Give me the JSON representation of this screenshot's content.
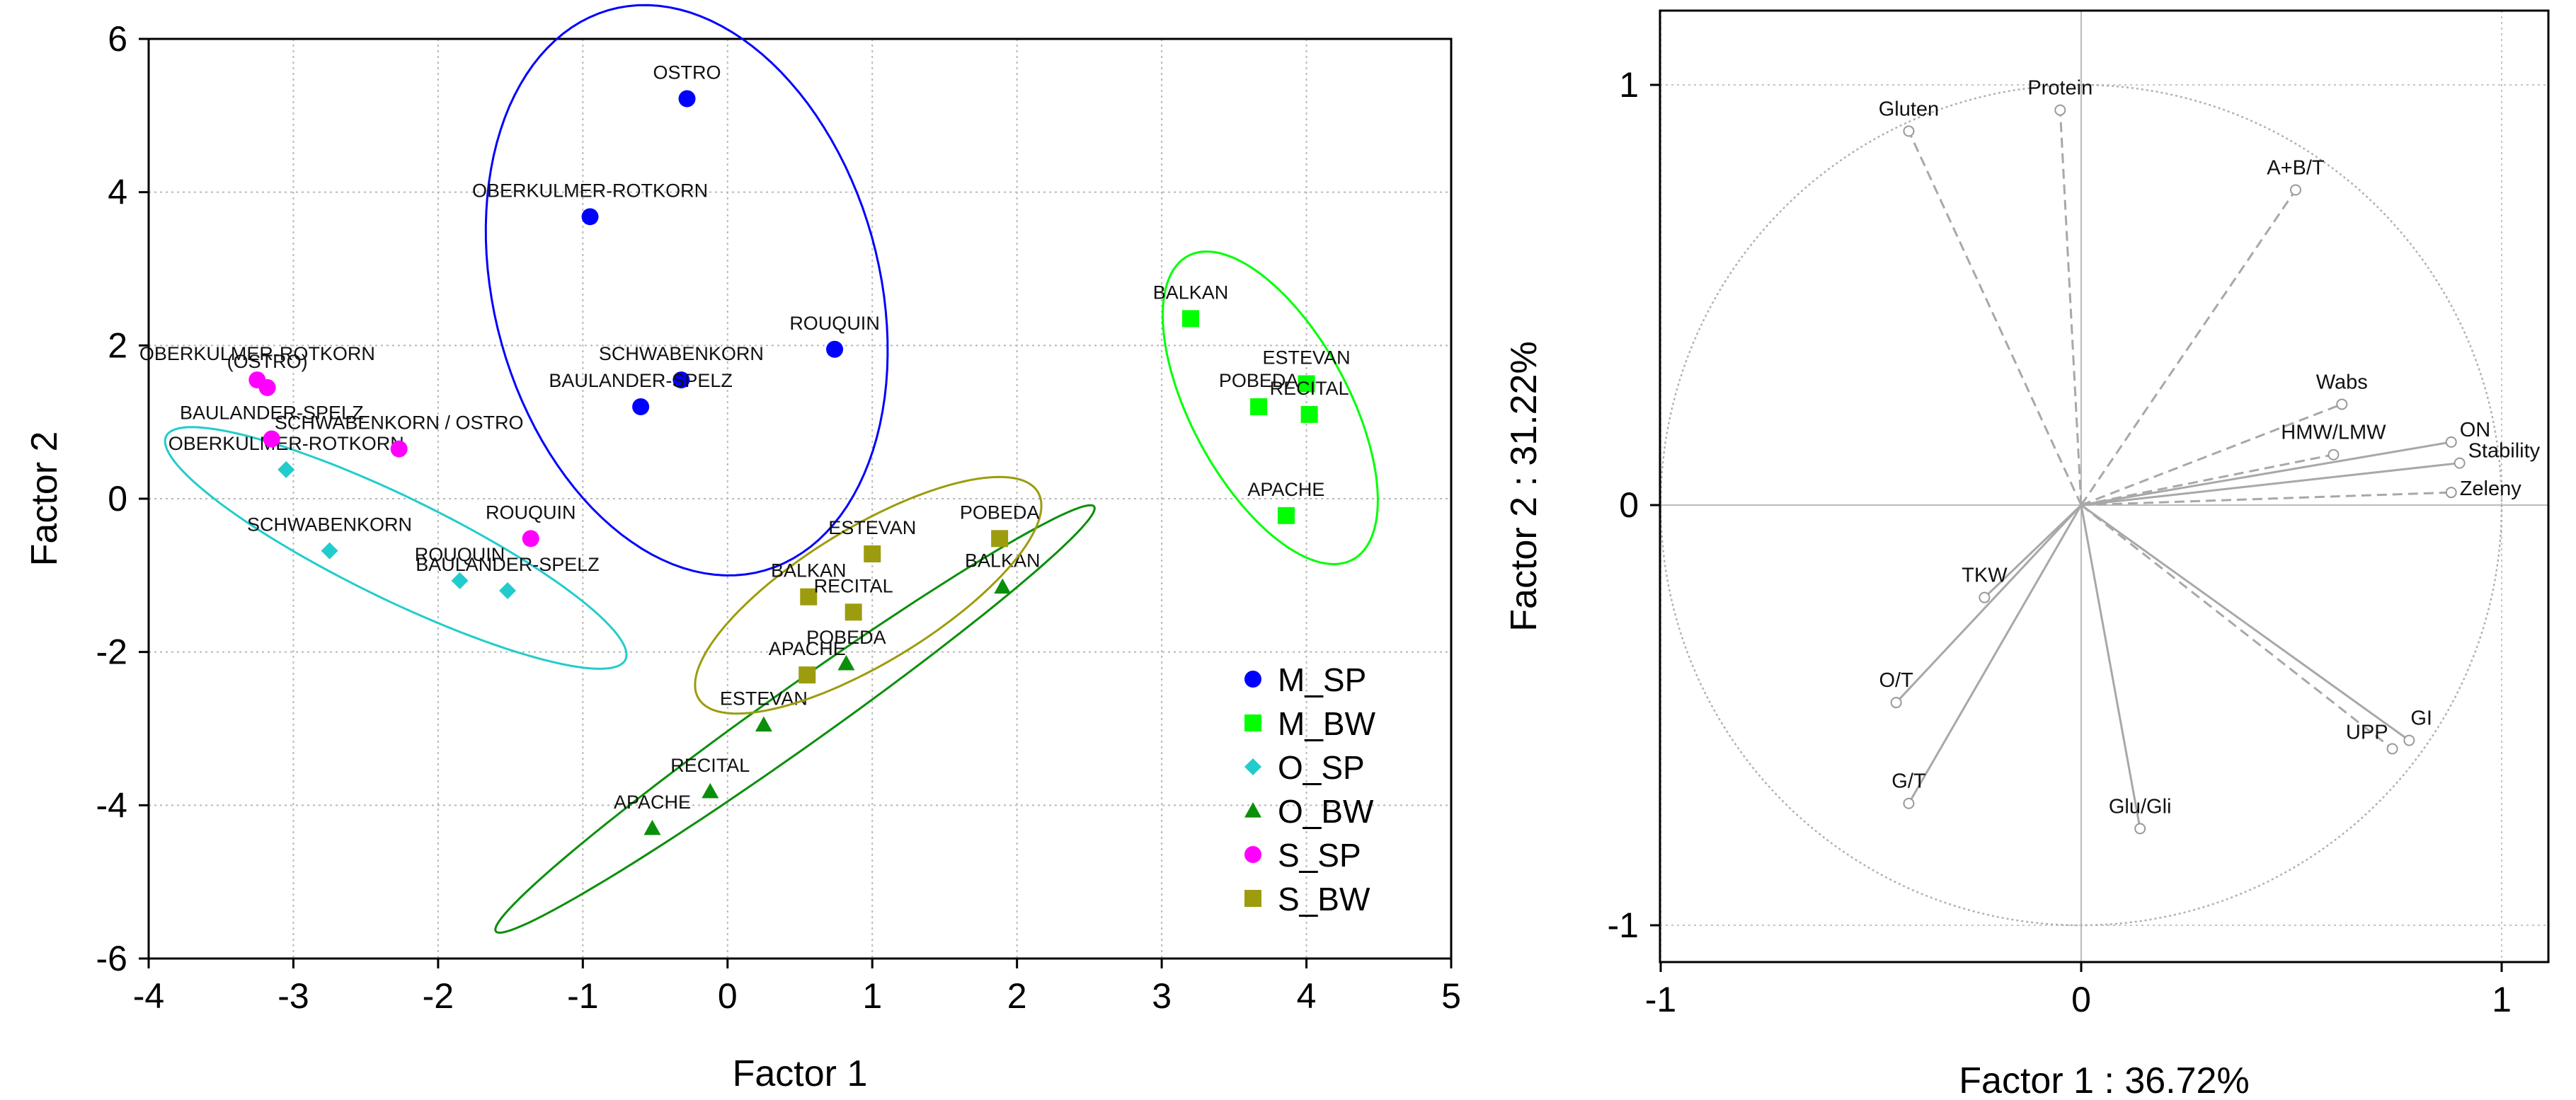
{
  "chart_data": [
    {
      "type": "scatter",
      "title": "",
      "xlabel": "Factor 1",
      "ylabel": "Factor 2",
      "xlim": [
        -4,
        5
      ],
      "ylim": [
        -6,
        6
      ],
      "xticks": [
        "-4",
        "-3",
        "-2",
        "-1",
        "0",
        "1",
        "2",
        "3",
        "4",
        "5"
      ],
      "yticks": [
        "6",
        "4",
        "2",
        "0",
        "-2",
        "-4",
        "-6"
      ],
      "grid": true,
      "legend_position": "bottom-right",
      "series": [
        {
          "name": "M_SP",
          "marker": "circle",
          "color": "#0000ff",
          "ellipse_color": "#0000ff",
          "points": [
            {
              "label": "OSTRO",
              "x": -0.28,
              "y": 5.22
            },
            {
              "label": "OBERKULMER-ROTKORN",
              "x": -0.95,
              "y": 3.68
            },
            {
              "label": "ROUQUIN",
              "x": 0.74,
              "y": 1.95
            },
            {
              "label": "SCHWABENKORN",
              "x": -0.32,
              "y": 1.55
            },
            {
              "label": "BAULANDER-SPELZ",
              "x": -0.6,
              "y": 1.2
            }
          ]
        },
        {
          "name": "M_BW",
          "marker": "square",
          "color": "#00ff00",
          "ellipse_color": "#00ff00",
          "points": [
            {
              "label": "BALKAN",
              "x": 3.2,
              "y": 2.35
            },
            {
              "label": "ESTEVAN",
              "x": 4.0,
              "y": 1.5
            },
            {
              "label": "POBEDA",
              "x": 3.67,
              "y": 1.2
            },
            {
              "label": "RECITAL",
              "x": 4.02,
              "y": 1.1
            },
            {
              "label": "APACHE",
              "x": 3.86,
              "y": -0.22
            }
          ]
        },
        {
          "name": "O_SP",
          "marker": "diamond",
          "color": "#22cccc",
          "ellipse_color": "#22cccc",
          "points": [
            {
              "label": "OBERKULMER-ROTKORN",
              "x": -3.05,
              "y": 0.38
            },
            {
              "label": "SCHWABENKORN",
              "x": -2.75,
              "y": -0.68
            },
            {
              "label": "ROUQUIN",
              "x": -1.85,
              "y": -1.07
            },
            {
              "label": "BAULANDER-SPELZ",
              "x": -1.52,
              "y": -1.2
            }
          ]
        },
        {
          "name": "O_BW",
          "marker": "triangle",
          "color": "#0a8f0a",
          "ellipse_color": "#0a8f0a",
          "points": [
            {
              "label": "BALKAN",
              "x": 1.9,
              "y": -1.15
            },
            {
              "label": "POBEDA",
              "x": 0.82,
              "y": -2.15
            },
            {
              "label": "ESTEVAN",
              "x": 0.25,
              "y": -2.95
            },
            {
              "label": "RECITAL",
              "x": -0.12,
              "y": -3.82
            },
            {
              "label": "APACHE",
              "x": -0.52,
              "y": -4.3
            }
          ]
        },
        {
          "name": "S_SP",
          "marker": "circle",
          "color": "#ff00ff",
          "ellipse_color": "",
          "points": [
            {
              "label": "OBERKULMER-ROTKORN",
              "x": -3.25,
              "y": 1.55
            },
            {
              "label": "(OSTRO)",
              "x": -3.18,
              "y": 1.45
            },
            {
              "label": "BAULANDER-SPELZ",
              "x": -3.15,
              "y": 0.78
            },
            {
              "label": "SCHWABENKORN / OSTRO",
              "x": -2.27,
              "y": 0.65
            },
            {
              "label": "ROUQUIN",
              "x": -1.36,
              "y": -0.52
            }
          ]
        },
        {
          "name": "S_BW",
          "marker": "square",
          "color": "#9c9c0e",
          "ellipse_color": "#9c9c0e",
          "points": [
            {
              "label": "POBEDA",
              "x": 1.88,
              "y": -0.52
            },
            {
              "label": "ESTEVAN",
              "x": 1.0,
              "y": -0.72
            },
            {
              "label": "BALKAN",
              "x": 0.56,
              "y": -1.28
            },
            {
              "label": "RECITAL",
              "x": 0.87,
              "y": -1.48
            },
            {
              "label": "APACHE",
              "x": 0.55,
              "y": -2.3
            }
          ]
        }
      ]
    },
    {
      "type": "scatter",
      "subtype": "loading-plot",
      "title": "",
      "xlabel": "Factor 1 : 36.72%",
      "ylabel": "Factor 2 : 31.22%",
      "xlim": [
        -1.1,
        1.1
      ],
      "ylim": [
        -1.1,
        1.1
      ],
      "xticks": [
        "-1",
        "0",
        "1"
      ],
      "yticks": [
        "1",
        "0",
        "-1"
      ],
      "grid": true,
      "unit_circle": true,
      "loadings": [
        {
          "label": "Protein",
          "x": -0.05,
          "y": 0.94,
          "style": "dashed"
        },
        {
          "label": "Gluten",
          "x": -0.41,
          "y": 0.89,
          "style": "dashed"
        },
        {
          "label": "A+B/T",
          "x": 0.51,
          "y": 0.75,
          "style": "dashed"
        },
        {
          "label": "Wabs",
          "x": 0.62,
          "y": 0.24,
          "style": "dashed"
        },
        {
          "label": "HMW/LMW",
          "x": 0.6,
          "y": 0.12,
          "style": "dashed"
        },
        {
          "label": "ON",
          "x": 0.88,
          "y": 0.15,
          "style": "solid"
        },
        {
          "label": "Stability",
          "x": 0.9,
          "y": 0.1,
          "style": "solid"
        },
        {
          "label": "Zeleny",
          "x": 0.88,
          "y": 0.03,
          "style": "dashed"
        },
        {
          "label": "TKW",
          "x": -0.23,
          "y": -0.22,
          "style": "solid"
        },
        {
          "label": "O/T",
          "x": -0.44,
          "y": -0.47,
          "style": "solid"
        },
        {
          "label": "G/T",
          "x": -0.41,
          "y": -0.71,
          "style": "solid"
        },
        {
          "label": "Glu/Gli",
          "x": 0.14,
          "y": -0.77,
          "style": "solid"
        },
        {
          "label": "UPP",
          "x": 0.74,
          "y": -0.58,
          "style": "dashed"
        },
        {
          "label": "GI",
          "x": 0.78,
          "y": -0.56,
          "style": "solid"
        }
      ]
    }
  ]
}
